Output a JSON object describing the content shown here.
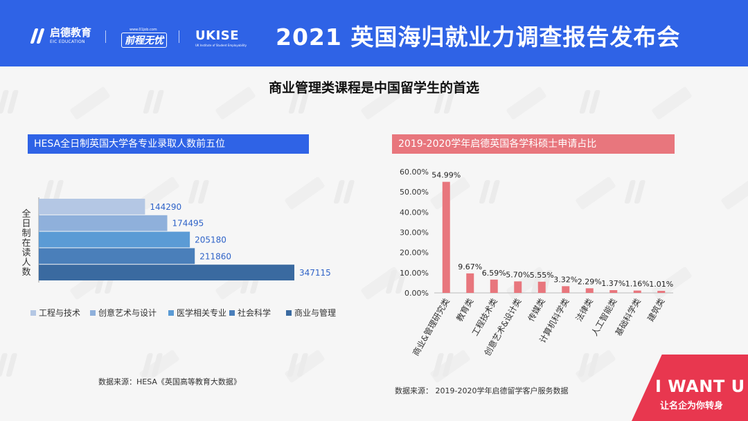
{
  "header": {
    "logo_eic_cn": "启德教育",
    "logo_eic_en": "EIC EDUCATION",
    "logo_qc_url": "www.01job.com",
    "logo_qc_main": "前程无忧",
    "logo_ukise": "UKISE",
    "logo_ukise_sub": "UK Institute of Student Employability",
    "event_title": "2021 英国海归就业力调查报告发布会"
  },
  "slide_title": "商业管理类课程是中国留学生的首选",
  "left_panel": {
    "title": "HESA全日制英国大学各专业录取人数前五位",
    "source": "数据来源：HESA《英国高等教育大数据》"
  },
  "right_panel": {
    "title": "2019-2020学年启德英国各学科硕士申请占比",
    "source": "数据来源：  2019-2020学年启德留学客户服务数据"
  },
  "badge": {
    "main": "I WANT U",
    "sub": "让名企为你转身"
  },
  "chart_data": [
    {
      "type": "bar",
      "orientation": "horizontal",
      "stacked_look": "staircase",
      "ylabel": "全日制在读人数",
      "categories": [
        "工程与技术",
        "创意艺术与设计",
        "医学相关专业",
        "社会科学",
        "商业与管理"
      ],
      "values": [
        144290,
        174495,
        205180,
        211860,
        347115
      ],
      "value_labels": [
        "144290",
        "174495",
        "205180",
        "211860",
        "347115"
      ],
      "colors": [
        "#b4c7e4",
        "#8fb0db",
        "#5b9bd5",
        "#4a7fba",
        "#3a6aa0"
      ],
      "label_color": "#2f63c8",
      "legend_position": "bottom",
      "xlim": [
        0,
        360000
      ],
      "grid": false
    },
    {
      "type": "bar",
      "categories": [
        "商业&管理研究类",
        "教育类",
        "工程技术类",
        "创意艺术&设计类",
        "传媒类",
        "计算机科学类",
        "法律类",
        "人工智能类",
        "基础科学类",
        "建筑类"
      ],
      "values": [
        54.99,
        9.67,
        6.59,
        5.7,
        5.55,
        3.32,
        2.29,
        1.37,
        1.16,
        1.01
      ],
      "value_labels": [
        "54.99%",
        "9.67%",
        "6.59%",
        "5.70%",
        "5.55%",
        "3.32%",
        "2.29%",
        "1.37%",
        "1.16%",
        "1.01%"
      ],
      "ylim": [
        0,
        60
      ],
      "yticks": [
        0,
        10,
        20,
        30,
        40,
        50,
        60
      ],
      "ytick_labels": [
        "0.00%",
        "10.00%",
        "20.00%",
        "30.00%",
        "40.00%",
        "50.00%",
        "60.00%"
      ],
      "color": "#e8767d",
      "grid": false
    }
  ]
}
